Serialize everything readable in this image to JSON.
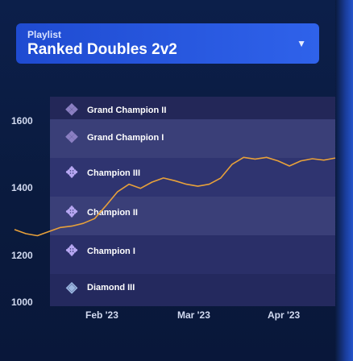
{
  "playlist": {
    "label": "Playlist",
    "value": "Ranked Doubles 2v2"
  },
  "ranks": [
    {
      "name": "Grand Champion II",
      "icon": "grand-champion-icon"
    },
    {
      "name": "Grand Champion I",
      "icon": "grand-champion-icon"
    },
    {
      "name": "Champion III",
      "icon": "champion-icon"
    },
    {
      "name": "Champion II",
      "icon": "champion-icon"
    },
    {
      "name": "Champion I",
      "icon": "champion-icon"
    },
    {
      "name": "Diamond III",
      "icon": "diamond-icon"
    }
  ],
  "colors": {
    "line": "#e8a13a",
    "band_light": "#3a3f78",
    "band_dark": "#252a5e",
    "accent": "#2a5ae2"
  },
  "chart_data": {
    "type": "line",
    "x_tick_labels": [
      "Feb '23",
      "Mar '23",
      "Apr '23"
    ],
    "y_tick_labels": [
      "1600",
      "1400",
      "1200",
      "1000"
    ],
    "ylim": [
      960,
      1640
    ],
    "series": [
      {
        "values": [
          1230,
          1218,
          1212,
          1224,
          1236,
          1240,
          1248,
          1262,
          1300,
          1340,
          1362,
          1350,
          1368,
          1380,
          1372,
          1362,
          1356,
          1362,
          1380,
          1420,
          1440,
          1435,
          1440,
          1430,
          1415,
          1430,
          1436,
          1432,
          1438
        ]
      }
    ]
  }
}
